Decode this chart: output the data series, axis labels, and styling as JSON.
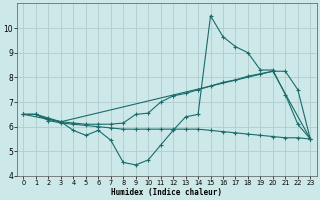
{
  "xlabel": "Humidex (Indice chaleur)",
  "xlim": [
    -0.5,
    23.5
  ],
  "ylim": [
    4,
    11
  ],
  "yticks": [
    4,
    5,
    6,
    7,
    8,
    9,
    10
  ],
  "xticks": [
    0,
    1,
    2,
    3,
    4,
    5,
    6,
    7,
    8,
    9,
    10,
    11,
    12,
    13,
    14,
    15,
    16,
    17,
    18,
    19,
    20,
    21,
    22,
    23
  ],
  "bg_color": "#cde8e8",
  "grid_color": "#b0cccc",
  "line_color": "#1a6b6b",
  "line1_x": [
    0,
    1,
    2,
    3,
    4,
    5,
    6,
    7,
    8,
    9,
    10,
    11,
    12,
    13,
    14,
    15,
    16,
    17,
    18,
    19,
    20,
    21,
    22,
    23
  ],
  "line1_y": [
    6.5,
    6.5,
    6.3,
    6.2,
    5.85,
    5.65,
    5.85,
    5.45,
    4.55,
    4.45,
    4.65,
    5.25,
    5.85,
    6.4,
    6.5,
    10.5,
    9.65,
    9.25,
    9.0,
    8.3,
    8.3,
    7.3,
    6.1,
    5.5
  ],
  "line2_x": [
    0,
    1,
    2,
    3,
    4,
    5,
    6,
    7,
    8,
    9,
    10,
    11,
    12,
    13,
    14,
    15,
    16,
    17,
    18,
    19,
    20,
    21,
    22,
    23
  ],
  "line2_y": [
    6.5,
    6.5,
    6.35,
    6.2,
    6.15,
    6.1,
    6.1,
    6.1,
    6.15,
    6.5,
    6.55,
    7.0,
    7.25,
    7.35,
    7.5,
    7.65,
    7.8,
    7.9,
    8.05,
    8.15,
    8.25,
    8.25,
    7.5,
    5.5
  ],
  "line3_x": [
    0,
    1,
    2,
    3,
    4,
    5,
    6,
    7,
    8,
    9,
    10,
    11,
    12,
    13,
    14,
    15,
    16,
    17,
    18,
    19,
    20,
    21,
    22,
    23
  ],
  "line3_y": [
    6.5,
    6.5,
    6.25,
    6.15,
    6.1,
    6.05,
    6.0,
    5.95,
    5.9,
    5.9,
    5.9,
    5.9,
    5.9,
    5.9,
    5.9,
    5.85,
    5.8,
    5.75,
    5.7,
    5.65,
    5.6,
    5.55,
    5.55,
    5.5
  ],
  "line4_x": [
    0,
    3,
    20,
    23
  ],
  "line4_y": [
    6.5,
    6.2,
    8.25,
    5.5
  ]
}
